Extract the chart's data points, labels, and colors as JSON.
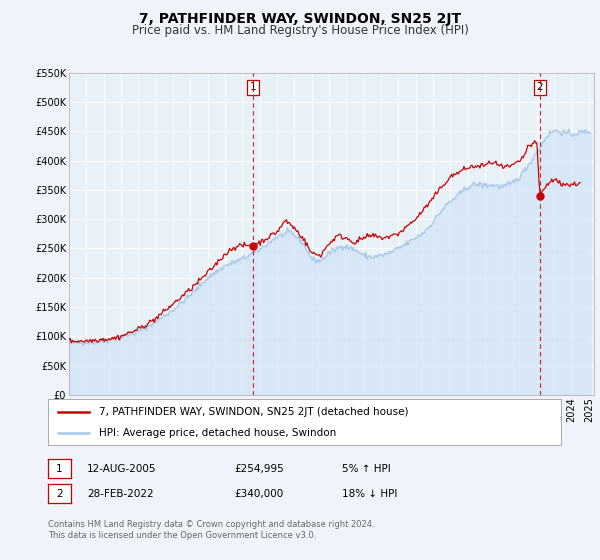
{
  "title": "7, PATHFINDER WAY, SWINDON, SN25 2JT",
  "subtitle": "Price paid vs. HM Land Registry's House Price Index (HPI)",
  "ylim": [
    0,
    550000
  ],
  "yticks": [
    0,
    50000,
    100000,
    150000,
    200000,
    250000,
    300000,
    350000,
    400000,
    450000,
    500000,
    550000
  ],
  "ytick_labels": [
    "£0",
    "£50K",
    "£100K",
    "£150K",
    "£200K",
    "£250K",
    "£300K",
    "£350K",
    "£400K",
    "£450K",
    "£500K",
    "£550K"
  ],
  "xlim_start": 1995.0,
  "xlim_end": 2025.3,
  "hpi_color": "#a8c8e8",
  "hpi_fill_color": "#d0e4f4",
  "price_color": "#cc0000",
  "dot_color": "#cc0000",
  "sale1_x": 2005.617,
  "sale1_y": 254995,
  "sale1_label": "1",
  "sale2_x": 2022.163,
  "sale2_y": 340000,
  "sale2_label": "2",
  "legend_line1": "7, PATHFINDER WAY, SWINDON, SN25 2JT (detached house)",
  "legend_line2": "HPI: Average price, detached house, Swindon",
  "ann1_date": "12-AUG-2005",
  "ann1_price": "£254,995",
  "ann1_hpi": "5% ↑ HPI",
  "ann2_date": "28-FEB-2022",
  "ann2_price": "£340,000",
  "ann2_hpi": "18% ↓ HPI",
  "footer": "Contains HM Land Registry data © Crown copyright and database right 2024.\nThis data is licensed under the Open Government Licence v3.0.",
  "bg_color": "#f0f4fa",
  "plot_bg": "#e8f0f8",
  "grid_color": "#ffffff",
  "title_fontsize": 10,
  "subtitle_fontsize": 8.5,
  "tick_fontsize": 7,
  "legend_fontsize": 7.5,
  "ann_fontsize": 7.5,
  "footer_fontsize": 6
}
